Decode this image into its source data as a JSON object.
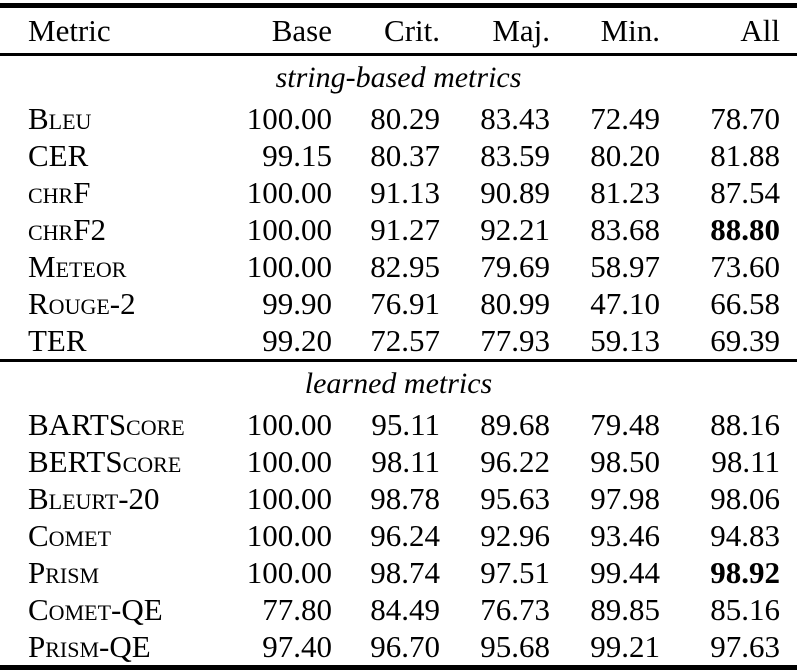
{
  "table": {
    "columns": [
      "Metric",
      "Base",
      "Crit.",
      "Maj.",
      "Min.",
      "All"
    ],
    "sections": [
      {
        "title": "string-based metrics",
        "rows": [
          {
            "metric": "Bleu",
            "values": [
              "100.00",
              "80.29",
              "83.43",
              "72.49",
              "78.70"
            ],
            "bold": []
          },
          {
            "metric": "CER",
            "values": [
              "99.15",
              "80.37",
              "83.59",
              "80.20",
              "81.88"
            ],
            "bold": []
          },
          {
            "metric": "chrF",
            "values": [
              "100.00",
              "91.13",
              "90.89",
              "81.23",
              "87.54"
            ],
            "bold": []
          },
          {
            "metric": "chrF2",
            "values": [
              "100.00",
              "91.27",
              "92.21",
              "83.68",
              "88.80"
            ],
            "bold": [
              4
            ]
          },
          {
            "metric": "Meteor",
            "values": [
              "100.00",
              "82.95",
              "79.69",
              "58.97",
              "73.60"
            ],
            "bold": []
          },
          {
            "metric": "Rouge-2",
            "values": [
              "99.90",
              "76.91",
              "80.99",
              "47.10",
              "66.58"
            ],
            "bold": []
          },
          {
            "metric": "TER",
            "values": [
              "99.20",
              "72.57",
              "77.93",
              "59.13",
              "69.39"
            ],
            "bold": []
          }
        ]
      },
      {
        "title": "learned metrics",
        "rows": [
          {
            "metric": "BARTScore",
            "values": [
              "100.00",
              "95.11",
              "89.68",
              "79.48",
              "88.16"
            ],
            "bold": []
          },
          {
            "metric": "BERTScore",
            "values": [
              "100.00",
              "98.11",
              "96.22",
              "98.50",
              "98.11"
            ],
            "bold": []
          },
          {
            "metric": "Bleurt-20",
            "values": [
              "100.00",
              "98.78",
              "95.63",
              "97.98",
              "98.06"
            ],
            "bold": []
          },
          {
            "metric": "Comet",
            "values": [
              "100.00",
              "96.24",
              "92.96",
              "93.46",
              "94.83"
            ],
            "bold": []
          },
          {
            "metric": "Prism",
            "values": [
              "100.00",
              "98.74",
              "97.51",
              "99.44",
              "98.92"
            ],
            "bold": [
              4
            ]
          },
          {
            "metric": "Comet-QE",
            "values": [
              "77.80",
              "84.49",
              "76.73",
              "89.85",
              "85.16"
            ],
            "bold": []
          },
          {
            "metric": "Prism-QE",
            "values": [
              "97.40",
              "96.70",
              "95.68",
              "99.21",
              "97.63"
            ],
            "bold": []
          }
        ]
      }
    ]
  }
}
